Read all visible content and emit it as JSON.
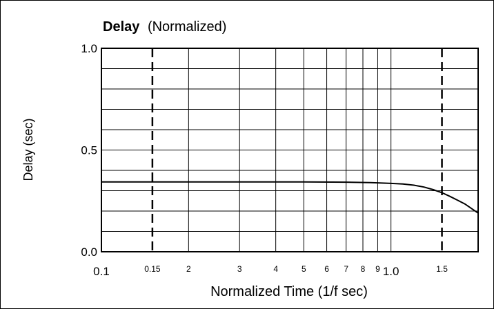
{
  "chart_data": {
    "type": "line",
    "title": "Delay",
    "subtitle": "(Normalized)",
    "xlabel": "Normalized Time (1/f sec)",
    "ylabel": "Delay (sec)",
    "x_scale": "log",
    "xlim": [
      0.1,
      2.0
    ],
    "ylim": [
      0.0,
      1.0
    ],
    "x_ticks": [
      {
        "value": 0.1,
        "label": "0.1"
      },
      {
        "value": 0.15,
        "label": "0.15"
      },
      {
        "value": 0.2,
        "label": "2"
      },
      {
        "value": 0.3,
        "label": "3"
      },
      {
        "value": 0.4,
        "label": "4"
      },
      {
        "value": 0.5,
        "label": "5"
      },
      {
        "value": 0.6,
        "label": "6"
      },
      {
        "value": 0.7,
        "label": "7"
      },
      {
        "value": 0.8,
        "label": "8"
      },
      {
        "value": 0.9,
        "label": "9"
      },
      {
        "value": 1.0,
        "label": "1.0"
      },
      {
        "value": 1.5,
        "label": "1.5"
      }
    ],
    "y_ticks": [
      {
        "value": 0.0,
        "label": "0.0"
      },
      {
        "value": 0.5,
        "label": "0.5"
      },
      {
        "value": 1.0,
        "label": "1.0"
      }
    ],
    "dashed_verticals": [
      0.15,
      1.5
    ],
    "grid": true,
    "series": [
      {
        "color": "#000000",
        "x": [
          0.1,
          0.2,
          0.3,
          0.5,
          0.7,
          0.85,
          1.0,
          1.1,
          1.2,
          1.3,
          1.4,
          1.5,
          1.6,
          1.7,
          1.8,
          2.0
        ],
        "y": [
          0.343,
          0.343,
          0.343,
          0.343,
          0.342,
          0.34,
          0.336,
          0.333,
          0.327,
          0.318,
          0.305,
          0.29,
          0.272,
          0.253,
          0.235,
          0.19
        ]
      }
    ]
  }
}
